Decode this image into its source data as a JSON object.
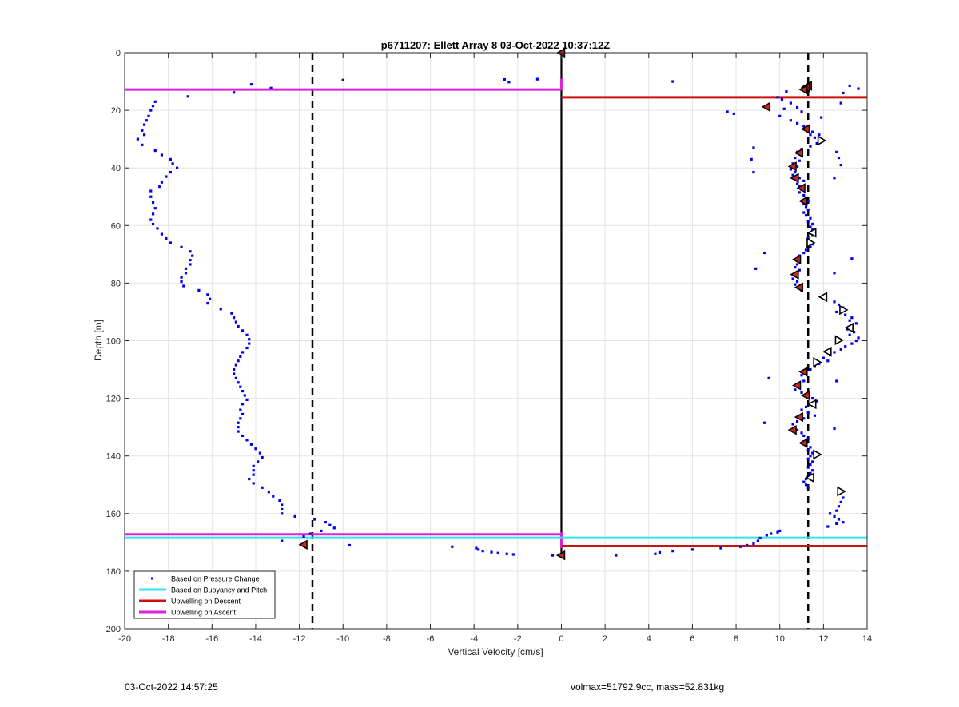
{
  "chart_data": {
    "type": "scatter",
    "title": "p6711207: Ellett Array 8 03-Oct-2022 10:37:12Z",
    "xlabel": "Vertical Velocity [cm/s]",
    "ylabel": "Depth [m]",
    "xlim": [
      -20,
      14
    ],
    "ylim": [
      0,
      200
    ],
    "y_reversed": true,
    "grid": true,
    "xticks": [
      -20,
      -18,
      -16,
      -14,
      -12,
      -10,
      -8,
      -6,
      -4,
      -2,
      0,
      2,
      4,
      6,
      8,
      10,
      12,
      14
    ],
    "yticks": [
      0,
      20,
      40,
      60,
      80,
      100,
      120,
      140,
      160,
      180,
      200
    ],
    "legend_position": "bottom-left",
    "legend": [
      {
        "label": "Based on Pressure Change",
        "style": "dots",
        "color": "#0000ee"
      },
      {
        "label": "Based on Buoyancy and Pitch",
        "style": "line",
        "color": "#33e6ee"
      },
      {
        "label": "Upwelling on Descent",
        "style": "line",
        "color": "#cc1111"
      },
      {
        "label": "Upwelling on Ascent",
        "style": "line",
        "color": "#dd22dd"
      }
    ],
    "dashed_lines_x": [
      -11.4,
      11.3
    ],
    "zero_line_x": 0,
    "horizontal_lines": [
      {
        "series": "Upwelling on Ascent",
        "color": "#dd22dd",
        "depth": 12.8,
        "x_from": -20,
        "x_to": 0
      },
      {
        "series": "Upwelling on Descent",
        "color": "#cc1111",
        "depth": 15.5,
        "x_from": 0,
        "x_to": 14
      },
      {
        "series": "Upwelling on Ascent",
        "color": "#dd22dd",
        "depth": 167.2,
        "x_from": -20,
        "x_to": 0
      },
      {
        "series": "Based on Buoyancy and Pitch",
        "color": "#33e6ee",
        "depth": 168.4,
        "x_from": -20,
        "x_to": 0
      },
      {
        "series": "Based on Buoyancy and Pitch",
        "color": "#33e6ee",
        "depth": 168.4,
        "x_from": 0,
        "x_to": 14
      },
      {
        "series": "Upwelling on Descent",
        "color": "#cc1111",
        "depth": 171.3,
        "x_from": 0,
        "x_to": 14
      }
    ],
    "pressure_change_points": [
      [
        -18.6,
        17
      ],
      [
        -18.7,
        18.5
      ],
      [
        -18.8,
        20
      ],
      [
        -18.9,
        22
      ],
      [
        -19.0,
        23.5
      ],
      [
        -19.1,
        25
      ],
      [
        -19.2,
        27
      ],
      [
        -19.1,
        28.5
      ],
      [
        -19.4,
        30
      ],
      [
        -19.2,
        32
      ],
      [
        -18.6,
        34
      ],
      [
        -18.3,
        35.5
      ],
      [
        -17.9,
        37
      ],
      [
        -17.8,
        38.5
      ],
      [
        -17.6,
        40
      ],
      [
        -17.9,
        41.5
      ],
      [
        -18.1,
        43
      ],
      [
        -18.3,
        45
      ],
      [
        -18.4,
        46.5
      ],
      [
        -18.8,
        48
      ],
      [
        -18.8,
        50
      ],
      [
        -18.7,
        52
      ],
      [
        -18.6,
        54
      ],
      [
        -18.7,
        56
      ],
      [
        -18.8,
        58
      ],
      [
        -18.7,
        59.5
      ],
      [
        -18.5,
        61
      ],
      [
        -18.3,
        63
      ],
      [
        -18.1,
        64.5
      ],
      [
        -17.9,
        66
      ],
      [
        -17.4,
        67.5
      ],
      [
        -17.0,
        69
      ],
      [
        -16.9,
        70.5
      ],
      [
        -17.0,
        72
      ],
      [
        -17.0,
        73.5
      ],
      [
        -17.2,
        75
      ],
      [
        -17.2,
        76.5
      ],
      [
        -17.4,
        78
      ],
      [
        -17.4,
        79.5
      ],
      [
        -17.3,
        81
      ],
      [
        -16.6,
        82.5
      ],
      [
        -16.2,
        84
      ],
      [
        -16.1,
        85.5
      ],
      [
        -16.2,
        87
      ],
      [
        -15.6,
        89
      ],
      [
        -15.1,
        90.5
      ],
      [
        -15.0,
        92
      ],
      [
        -14.9,
        93.5
      ],
      [
        -14.8,
        95
      ],
      [
        -14.6,
        96.5
      ],
      [
        -14.4,
        98
      ],
      [
        -14.3,
        99.5
      ],
      [
        -14.3,
        101
      ],
      [
        -14.4,
        102.5
      ],
      [
        -14.6,
        104
      ],
      [
        -14.7,
        105.5
      ],
      [
        -14.8,
        107
      ],
      [
        -14.9,
        108.5
      ],
      [
        -15.0,
        110
      ],
      [
        -15.0,
        111.5
      ],
      [
        -14.9,
        113
      ],
      [
        -14.8,
        114.5
      ],
      [
        -14.7,
        116
      ],
      [
        -14.6,
        117.5
      ],
      [
        -14.5,
        119
      ],
      [
        -14.4,
        120.5
      ],
      [
        -14.6,
        122
      ],
      [
        -14.7,
        124
      ],
      [
        -14.6,
        125.5
      ],
      [
        -14.7,
        127
      ],
      [
        -14.8,
        128.5
      ],
      [
        -14.8,
        130
      ],
      [
        -14.8,
        131.5
      ],
      [
        -14.6,
        133
      ],
      [
        -14.4,
        134.5
      ],
      [
        -14.2,
        136
      ],
      [
        -14.0,
        137.5
      ],
      [
        -13.8,
        139
      ],
      [
        -13.7,
        140.5
      ],
      [
        -13.9,
        142
      ],
      [
        -14.1,
        143.5
      ],
      [
        -14.1,
        145
      ],
      [
        -14.1,
        146.5
      ],
      [
        -14.3,
        148
      ],
      [
        -14.1,
        149.5
      ],
      [
        -13.7,
        151
      ],
      [
        -13.4,
        152.5
      ],
      [
        -13.2,
        154
      ],
      [
        -12.9,
        155.5
      ],
      [
        -12.8,
        157
      ],
      [
        -12.8,
        158.5
      ],
      [
        -12.8,
        160
      ],
      [
        -12.2,
        161
      ],
      [
        -11.3,
        162
      ],
      [
        -10.8,
        163
      ],
      [
        -10.6,
        164
      ],
      [
        -10.4,
        165
      ],
      [
        -11.0,
        166
      ],
      [
        -11.5,
        167
      ],
      [
        -11.8,
        168
      ],
      [
        -12.8,
        169.5
      ],
      [
        -9.7,
        171
      ],
      [
        -5.0,
        171.5
      ],
      [
        -3.9,
        172
      ],
      [
        -3.8,
        172.5
      ],
      [
        -3.6,
        173
      ],
      [
        -3.2,
        173.4
      ],
      [
        -2.9,
        173.7
      ],
      [
        -2.5,
        174
      ],
      [
        -2.2,
        174.2
      ],
      [
        -0.4,
        174.5
      ],
      [
        2.5,
        174.5
      ],
      [
        4.3,
        174
      ],
      [
        4.5,
        173.5
      ],
      [
        5.1,
        173
      ],
      [
        6.0,
        172.5
      ],
      [
        7.3,
        172
      ],
      [
        8.2,
        171.5
      ],
      [
        8.5,
        171
      ],
      [
        8.8,
        170.5
      ],
      [
        9.0,
        169.5
      ],
      [
        9.1,
        168.5
      ],
      [
        9.4,
        167.5
      ],
      [
        9.6,
        167
      ],
      [
        9.9,
        166.5
      ],
      [
        10.0,
        166
      ],
      [
        -14.2,
        11
      ],
      [
        -13.3,
        12.3
      ],
      [
        -15.0,
        13.8
      ],
      [
        -17.1,
        15.2
      ],
      [
        -10.0,
        9.5
      ],
      [
        -2.6,
        9.3
      ],
      [
        -2.4,
        10.2
      ],
      [
        -1.1,
        9.2
      ],
      [
        5.1,
        10
      ],
      [
        10.3,
        13.5
      ],
      [
        9.9,
        15.5
      ],
      [
        10.1,
        16.2
      ],
      [
        10.5,
        17.5
      ],
      [
        10.8,
        19
      ],
      [
        10.2,
        19.5
      ],
      [
        11.0,
        20.5
      ],
      [
        7.6,
        20.5
      ],
      [
        7.9,
        21.2
      ],
      [
        10.0,
        22
      ],
      [
        10.5,
        23.5
      ],
      [
        10.8,
        24.5
      ],
      [
        11.1,
        25.5
      ],
      [
        11.3,
        26.5
      ],
      [
        11.5,
        27.5
      ],
      [
        11.4,
        28.5
      ],
      [
        11.6,
        29.5
      ],
      [
        11.8,
        30.5
      ],
      [
        11.7,
        31.5
      ],
      [
        11.4,
        32.5
      ],
      [
        11.0,
        33.5
      ],
      [
        10.8,
        34.5
      ],
      [
        11.0,
        35.5
      ],
      [
        10.7,
        36.5
      ],
      [
        10.9,
        37.5
      ],
      [
        10.6,
        38.5
      ],
      [
        10.8,
        39.5
      ],
      [
        10.5,
        40.5
      ],
      [
        10.7,
        41.5
      ],
      [
        10.6,
        42.5
      ],
      [
        10.9,
        43.5
      ],
      [
        11.1,
        44.5
      ],
      [
        10.8,
        45.5
      ],
      [
        10.9,
        46.5
      ],
      [
        11.0,
        47.5
      ],
      [
        10.9,
        48.5
      ],
      [
        11.1,
        49.5
      ],
      [
        11.2,
        50.5
      ],
      [
        11.3,
        51.5
      ],
      [
        11.1,
        52.5
      ],
      [
        11.2,
        53.5
      ],
      [
        11.3,
        54.5
      ],
      [
        11.1,
        55.5
      ],
      [
        11.2,
        56.5
      ],
      [
        11.4,
        57.5
      ],
      [
        11.3,
        58.5
      ],
      [
        11.5,
        59.5
      ],
      [
        11.4,
        60.5
      ],
      [
        11.5,
        61.5
      ],
      [
        11.4,
        62.5
      ],
      [
        11.5,
        63.5
      ],
      [
        11.3,
        64.5
      ],
      [
        11.4,
        65.5
      ],
      [
        11.5,
        66.5
      ],
      [
        11.4,
        67.5
      ],
      [
        11.2,
        68.5
      ],
      [
        11.1,
        69.5
      ],
      [
        10.9,
        70.5
      ],
      [
        10.8,
        71.5
      ],
      [
        10.9,
        72.5
      ],
      [
        10.8,
        73.5
      ],
      [
        10.7,
        74.5
      ],
      [
        10.9,
        75.5
      ],
      [
        10.8,
        76.5
      ],
      [
        10.7,
        77.5
      ],
      [
        10.6,
        78.5
      ],
      [
        10.8,
        79.5
      ],
      [
        10.7,
        80.5
      ],
      [
        10.9,
        81.5
      ],
      [
        11.0,
        82.5
      ],
      [
        8.8,
        33
      ],
      [
        8.7,
        37
      ],
      [
        8.8,
        41.5
      ],
      [
        12.6,
        34.5
      ],
      [
        12.7,
        36.5
      ],
      [
        12.8,
        39
      ],
      [
        12.5,
        43.5
      ],
      [
        11.9,
        22.5
      ],
      [
        11.8,
        28.5
      ],
      [
        12.9,
        14
      ],
      [
        13.2,
        11.5
      ],
      [
        13.6,
        12.5
      ],
      [
        12.8,
        17.5
      ],
      [
        9.3,
        69.5
      ],
      [
        8.9,
        75
      ],
      [
        12.5,
        76.5
      ],
      [
        13.3,
        71.5
      ],
      [
        12.0,
        85.5
      ],
      [
        12.5,
        86.5
      ],
      [
        12.7,
        87.5
      ],
      [
        12.9,
        88.5
      ],
      [
        12.6,
        90
      ],
      [
        13.0,
        91
      ],
      [
        13.3,
        92
      ],
      [
        13.2,
        93
      ],
      [
        13.5,
        94
      ],
      [
        13.3,
        95
      ],
      [
        13.1,
        96
      ],
      [
        13.4,
        97
      ],
      [
        13.2,
        98
      ],
      [
        13.6,
        99
      ],
      [
        13.5,
        100
      ],
      [
        13.3,
        101
      ],
      [
        13.0,
        102
      ],
      [
        12.8,
        103
      ],
      [
        12.5,
        104
      ],
      [
        12.3,
        105
      ],
      [
        12.0,
        106
      ],
      [
        12.2,
        107
      ],
      [
        11.8,
        108
      ],
      [
        11.6,
        109
      ],
      [
        11.4,
        110
      ],
      [
        11.2,
        111
      ],
      [
        11.0,
        112
      ],
      [
        9.5,
        113
      ],
      [
        12.6,
        114
      ],
      [
        11.1,
        114
      ],
      [
        10.9,
        115
      ],
      [
        10.8,
        116
      ],
      [
        10.7,
        117
      ],
      [
        11.0,
        118
      ],
      [
        11.3,
        119
      ],
      [
        11.5,
        120
      ],
      [
        11.7,
        121
      ],
      [
        11.4,
        122
      ],
      [
        11.2,
        123
      ],
      [
        11.0,
        124
      ],
      [
        11.3,
        125
      ],
      [
        11.6,
        126
      ],
      [
        11.1,
        127
      ],
      [
        10.8,
        128
      ],
      [
        9.3,
        128.5
      ],
      [
        10.6,
        129
      ],
      [
        10.7,
        130
      ],
      [
        12.5,
        130.5
      ],
      [
        10.8,
        131
      ],
      [
        11.0,
        132
      ],
      [
        11.1,
        133
      ],
      [
        11.3,
        134
      ],
      [
        11.1,
        135
      ],
      [
        11.2,
        136
      ],
      [
        11.4,
        137
      ],
      [
        11.3,
        138
      ],
      [
        11.5,
        139
      ],
      [
        11.4,
        140
      ],
      [
        11.3,
        141
      ],
      [
        11.5,
        142
      ],
      [
        11.4,
        143
      ],
      [
        11.3,
        144
      ],
      [
        11.5,
        145
      ],
      [
        11.4,
        146
      ],
      [
        11.3,
        147
      ],
      [
        11.2,
        148
      ],
      [
        11.1,
        149
      ],
      [
        11.2,
        150
      ],
      [
        11.3,
        151
      ],
      [
        12.9,
        154.5
      ],
      [
        12.8,
        156
      ],
      [
        12.7,
        157.5
      ],
      [
        12.6,
        159
      ],
      [
        12.3,
        160
      ],
      [
        12.5,
        161
      ],
      [
        12.7,
        162
      ],
      [
        12.9,
        163
      ],
      [
        12.6,
        163.5
      ],
      [
        12.2,
        164.5
      ]
    ],
    "descent_markers": [
      [
        0,
        0
      ],
      [
        11.3,
        11.5
      ],
      [
        11.2,
        12
      ],
      [
        11.1,
        12.8
      ],
      [
        9.4,
        18.8
      ],
      [
        11.2,
        26.5
      ],
      [
        10.9,
        34.8
      ],
      [
        10.6,
        39.5
      ],
      [
        10.7,
        43.5
      ],
      [
        11.0,
        47
      ],
      [
        11.1,
        51.5
      ],
      [
        10.8,
        71.8
      ],
      [
        10.7,
        77
      ],
      [
        10.9,
        81.5
      ],
      [
        11.1,
        110.8
      ],
      [
        10.8,
        115.5
      ],
      [
        11.2,
        119
      ],
      [
        10.9,
        126.5
      ],
      [
        10.6,
        131
      ],
      [
        11.1,
        135.5
      ],
      [
        -11.8,
        170.8
      ],
      [
        0,
        174.5
      ]
    ],
    "ascent_markers": [
      [
        11.9,
        30.5
      ],
      [
        11.5,
        62.5
      ],
      [
        11.4,
        66
      ],
      [
        12.0,
        84.8
      ],
      [
        12.9,
        89.3
      ],
      [
        13.2,
        95.5
      ],
      [
        12.7,
        99.8
      ],
      [
        12.2,
        103.8
      ],
      [
        11.7,
        107.5
      ],
      [
        11.5,
        122
      ],
      [
        11.7,
        139.5
      ],
      [
        11.4,
        147.5
      ],
      [
        12.8,
        152.3
      ]
    ]
  },
  "footer": {
    "left": "03-Oct-2022 14:57:25",
    "right": "volmax=51792.9cc, mass=52.831kg"
  }
}
